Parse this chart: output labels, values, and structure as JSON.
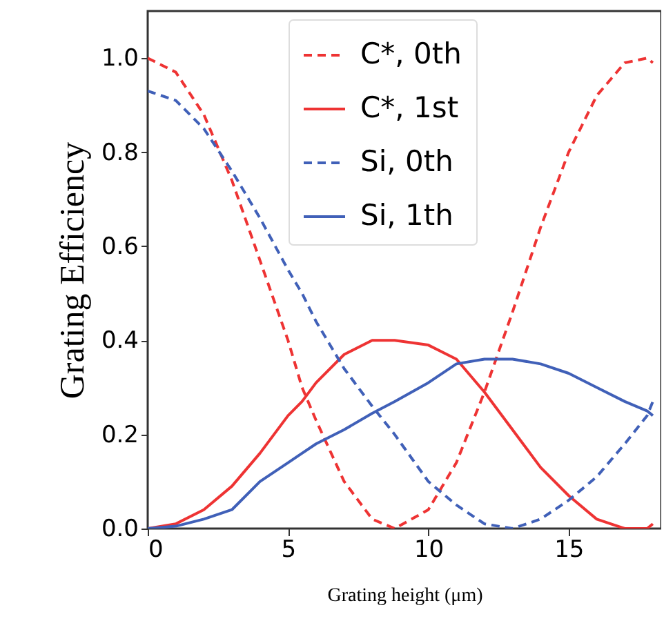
{
  "chart_data": {
    "type": "line",
    "xlabel": "Grating height (μm)",
    "ylabel": "Grating Efficiency",
    "x": [
      0,
      1,
      2,
      3,
      4,
      5,
      5.5,
      6,
      7,
      8,
      8.8,
      10,
      11,
      12,
      13,
      14,
      15,
      16,
      17,
      17.8,
      18
    ],
    "series": [
      {
        "name": "C*, 0th",
        "color": "#ee3333",
        "line_style": "dashed",
        "values": [
          1.0,
          0.97,
          0.88,
          0.74,
          0.57,
          0.4,
          0.3,
          0.23,
          0.1,
          0.02,
          0.0,
          0.04,
          0.14,
          0.29,
          0.46,
          0.64,
          0.8,
          0.92,
          0.99,
          1.0,
          0.99
        ]
      },
      {
        "name": "C*, 1st",
        "color": "#ee3333",
        "line_style": "solid",
        "values": [
          0.0,
          0.01,
          0.04,
          0.09,
          0.16,
          0.24,
          0.27,
          0.31,
          0.37,
          0.4,
          0.4,
          0.39,
          0.36,
          0.29,
          0.21,
          0.13,
          0.07,
          0.02,
          0.0,
          0.0,
          0.01
        ]
      },
      {
        "name": "Si, 0th",
        "color": "#4060b8",
        "line_style": "dashed",
        "values": [
          0.93,
          0.91,
          0.85,
          0.76,
          0.66,
          0.55,
          0.5,
          0.44,
          0.34,
          0.26,
          0.2,
          0.1,
          0.05,
          0.01,
          0.0,
          0.02,
          0.06,
          0.11,
          0.18,
          0.24,
          0.27
        ]
      },
      {
        "name": "Si, 1th",
        "color": "#4060b8",
        "line_style": "solid",
        "values": [
          0.0,
          0.005,
          0.02,
          0.04,
          0.1,
          0.14,
          0.16,
          0.18,
          0.21,
          0.245,
          0.27,
          0.31,
          0.35,
          0.36,
          0.36,
          0.35,
          0.33,
          0.3,
          0.27,
          0.25,
          0.24
        ]
      }
    ],
    "xlim": [
      0,
      18.3
    ],
    "xticks": [
      0,
      5,
      10,
      15
    ],
    "ylim": [
      0,
      1.1
    ],
    "yticks": [
      {
        "value": 0,
        "label": "0.0"
      },
      {
        "value": 0.2,
        "label": "0.2"
      },
      {
        "value": 0.4,
        "label": "0.4"
      },
      {
        "value": 0.6,
        "label": "0.6"
      },
      {
        "value": 0.8,
        "label": "0.8"
      },
      {
        "value": 1.0,
        "label": "1.0"
      }
    ],
    "legend": "top right",
    "marker": "none"
  }
}
